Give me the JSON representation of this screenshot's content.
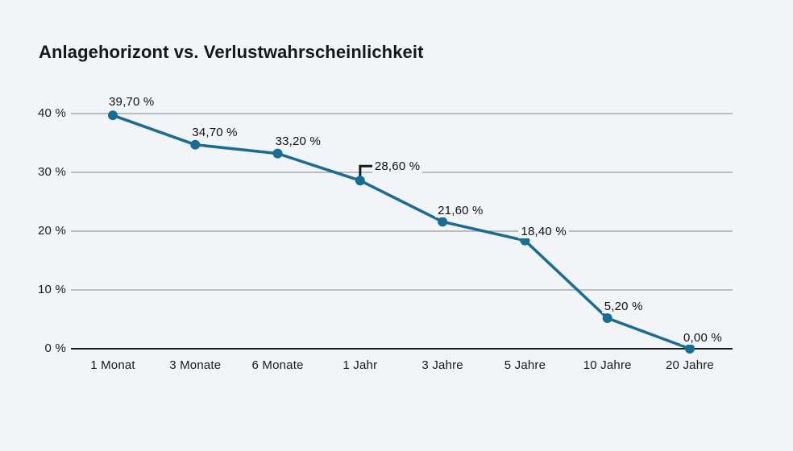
{
  "chart": {
    "title": "Anlagehorizont vs. Verlustwahrscheinlichkeit",
    "colors": {
      "background": "#f3f4f7",
      "line": "#146e96",
      "marker": "#146e96",
      "grid": "#9a9a9a",
      "axis": "#1a1a1a",
      "text": "#1a1a1a",
      "callout": "#1a1a1a"
    }
  },
  "chart_data": {
    "type": "line",
    "title": "Anlagehorizont vs. Verlustwahrscheinlichkeit",
    "categories": [
      "1 Monat",
      "3 Monate",
      "6 Monate",
      "1 Jahr",
      "3 Jahre",
      "5 Jahre",
      "10 Jahre",
      "20 Jahre"
    ],
    "values": [
      39.7,
      34.7,
      33.2,
      28.6,
      21.6,
      18.4,
      5.2,
      0.0
    ],
    "point_labels": [
      "39,70 %",
      "34,70 %",
      "33,20 %",
      "28,60 %",
      "21,60 %",
      "18,40 %",
      "5,20 %",
      "0,00 %"
    ],
    "callout_index": 3,
    "xlabel": "",
    "ylabel": "",
    "ylim": [
      0,
      40
    ],
    "yticks": [
      0,
      10,
      20,
      30,
      40
    ],
    "ytick_labels": [
      "0 %",
      "10 %",
      "20 %",
      "30 %",
      "40 %"
    ],
    "grid": "horizontal-only",
    "legend": "none"
  }
}
